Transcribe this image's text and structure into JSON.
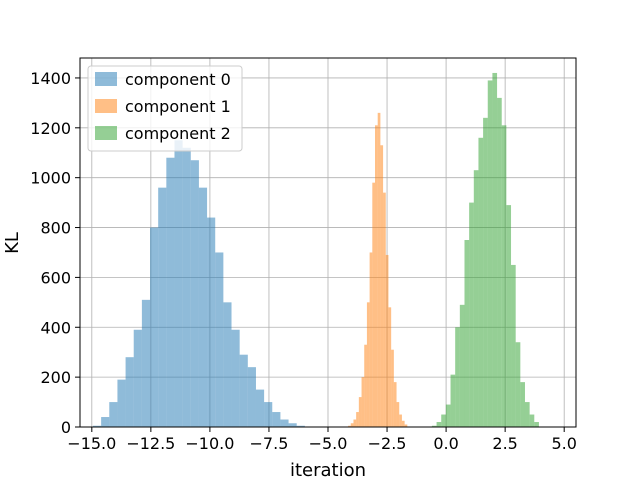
{
  "chart_data": {
    "type": "bar",
    "subtype": "histogram",
    "xlabel": "iteration",
    "ylabel": "KL",
    "xlim": [
      -15.5,
      5.5
    ],
    "ylim": [
      0,
      1480
    ],
    "xticks": [
      -15.0,
      -12.5,
      -10.0,
      -7.5,
      -5.0,
      -2.5,
      0.0,
      2.5,
      5.0
    ],
    "xtick_labels": [
      "−15.0",
      "−12.5",
      "−10.0",
      "−7.5",
      "−5.0",
      "−2.5",
      "0.0",
      "2.5",
      "5.0"
    ],
    "yticks": [
      0,
      200,
      400,
      600,
      800,
      1000,
      1200,
      1400
    ],
    "ytick_labels": [
      "0",
      "200",
      "400",
      "600",
      "800",
      "1000",
      "1200",
      "1400"
    ],
    "grid": true,
    "legend_position": "top-left",
    "alpha": 0.5,
    "series": [
      {
        "name": "component 0",
        "color": "#1f77b4",
        "bin_start": -14.95,
        "bin_width": 0.345,
        "counts": [
          5,
          40,
          100,
          190,
          280,
          390,
          510,
          800,
          960,
          1080,
          1150,
          1120,
          1070,
          960,
          840,
          700,
          500,
          390,
          290,
          240,
          150,
          100,
          60,
          30,
          15,
          5
        ]
      },
      {
        "name": "component 1",
        "color": "#ff7f0e",
        "bin_start": -4.15,
        "bin_width": 0.114,
        "counts": [
          5,
          15,
          30,
          60,
          120,
          200,
          330,
          500,
          700,
          980,
          1210,
          1260,
          1130,
          940,
          690,
          480,
          310,
          180,
          100,
          50,
          25,
          10
        ]
      },
      {
        "name": "component 2",
        "color": "#2ca02c",
        "bin_start": -0.6,
        "bin_width": 0.197,
        "counts": [
          5,
          20,
          50,
          90,
          210,
          400,
          490,
          750,
          900,
          1030,
          1160,
          1240,
          1390,
          1420,
          1320,
          1210,
          890,
          650,
          340,
          180,
          100,
          50,
          20
        ]
      }
    ]
  }
}
